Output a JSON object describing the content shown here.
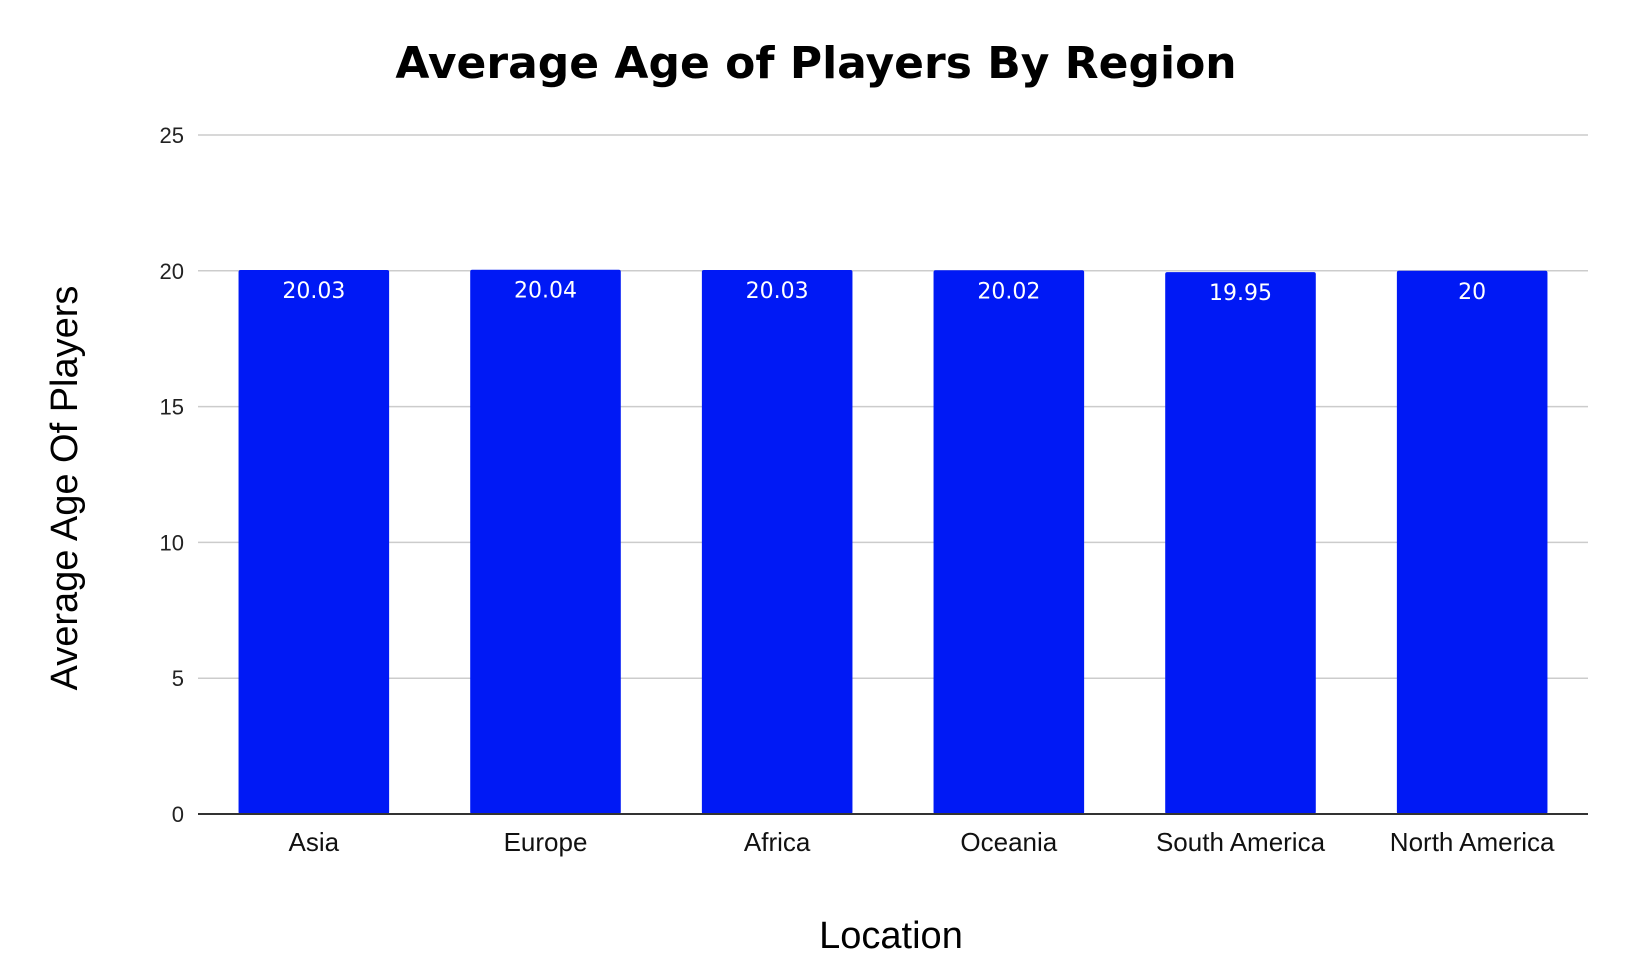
{
  "chart_data": {
    "type": "bar",
    "title": "Average Age of Players By Region",
    "xlabel": "Location",
    "ylabel": "Average Age Of Players",
    "categories": [
      "Asia",
      "Europe",
      "Africa",
      "Oceania",
      "South America",
      "North America"
    ],
    "values": [
      20.03,
      20.04,
      20.03,
      20.02,
      19.95,
      20
    ],
    "data_labels": [
      "20.03",
      "20.04",
      "20.03",
      "20.02",
      "19.95",
      "20"
    ],
    "ylim": [
      0,
      25
    ],
    "yticks": [
      "0",
      "5",
      "10",
      "15",
      "20",
      "25"
    ],
    "grid": true,
    "legend": "none",
    "bar_color": "#0019F5"
  }
}
